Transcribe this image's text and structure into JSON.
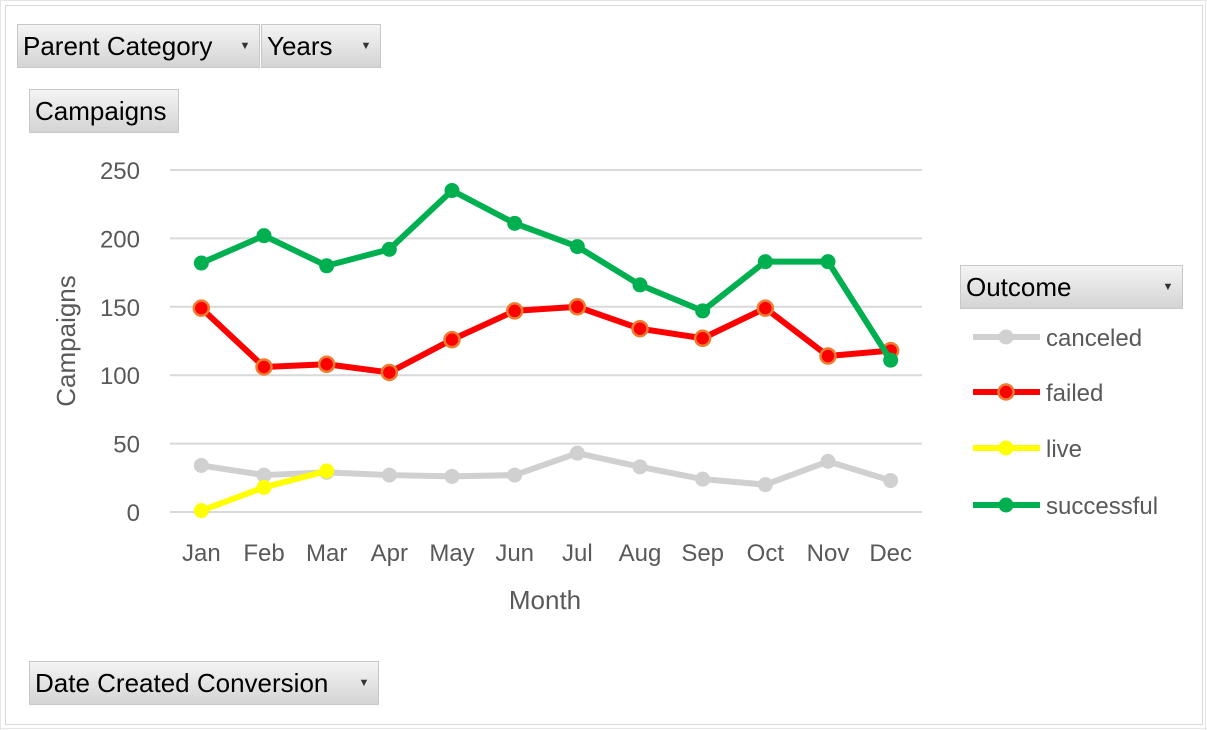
{
  "filters": {
    "parent_category": "Parent Category",
    "years": "Years",
    "values_field": "Campaigns",
    "axis_field": "Date Created Conversion",
    "legend_field": "Outcome"
  },
  "colors": {
    "canceled": "#d0d0d0",
    "failed": "#ff0000",
    "live": "#ffff00",
    "successful": "#00b050",
    "failed_marker_edge": "#ed7d31"
  },
  "icons": {
    "dropdown": "dropdown-arrow-icon"
  },
  "chart_data": {
    "type": "line",
    "title": "",
    "xlabel": "Month",
    "ylabel": "Campaigns",
    "ylim": [
      0,
      250
    ],
    "yticks": [
      0,
      50,
      100,
      150,
      200,
      250
    ],
    "grid": true,
    "legend_position": "right",
    "categories": [
      "Jan",
      "Feb",
      "Mar",
      "Apr",
      "May",
      "Jun",
      "Jul",
      "Aug",
      "Sep",
      "Oct",
      "Nov",
      "Dec"
    ],
    "series": [
      {
        "name": "canceled",
        "values": [
          34,
          27,
          29,
          27,
          26,
          27,
          43,
          33,
          24,
          20,
          37,
          23
        ]
      },
      {
        "name": "failed",
        "values": [
          149,
          106,
          108,
          102,
          126,
          147,
          150,
          134,
          127,
          149,
          114,
          118
        ]
      },
      {
        "name": "live",
        "values": [
          1,
          18,
          30,
          null,
          null,
          null,
          null,
          null,
          null,
          null,
          null,
          null
        ]
      },
      {
        "name": "successful",
        "values": [
          182,
          202,
          180,
          192,
          235,
          211,
          194,
          166,
          147,
          183,
          183,
          111
        ]
      }
    ]
  }
}
